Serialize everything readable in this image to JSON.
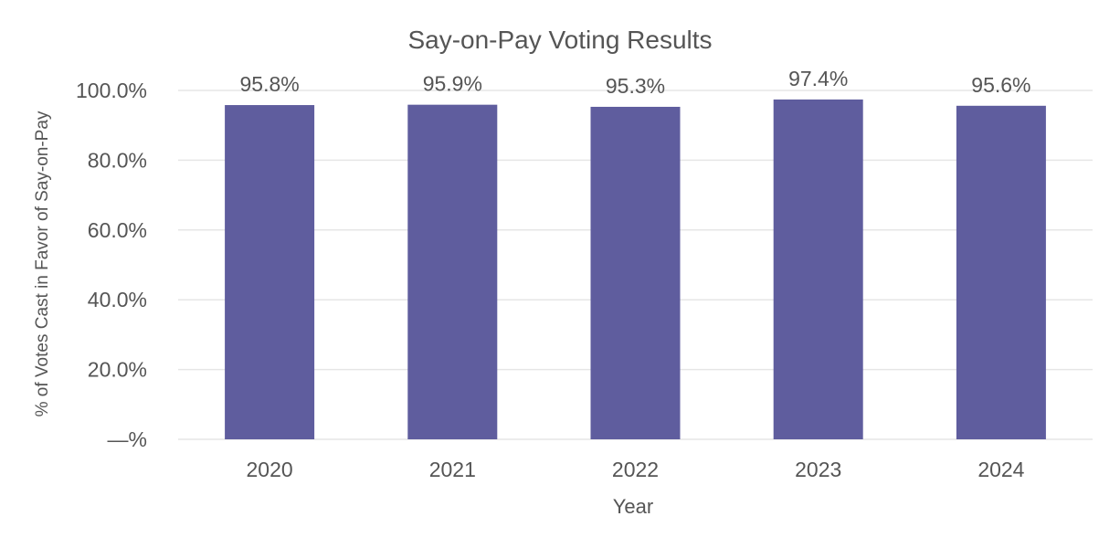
{
  "chart_data": {
    "type": "bar",
    "title": "Say-on-Pay Voting Results",
    "xlabel": "Year",
    "ylabel": "% of Votes Cast in Favor of Say-on-Pay",
    "categories": [
      "2020",
      "2021",
      "2022",
      "2023",
      "2024"
    ],
    "values": [
      95.8,
      95.9,
      95.3,
      97.4,
      95.6
    ],
    "data_labels": [
      "95.8%",
      "95.9%",
      "95.3%",
      "97.4%",
      "95.6%"
    ],
    "y_ticks": [
      0,
      20,
      40,
      60,
      80,
      100
    ],
    "y_tick_labels": [
      "—%",
      "20.0%",
      "40.0%",
      "60.0%",
      "80.0%",
      "100.0%"
    ],
    "ylim": [
      0,
      100
    ],
    "grid": true,
    "legend": "none",
    "bar_color": "#5f5d9e"
  }
}
